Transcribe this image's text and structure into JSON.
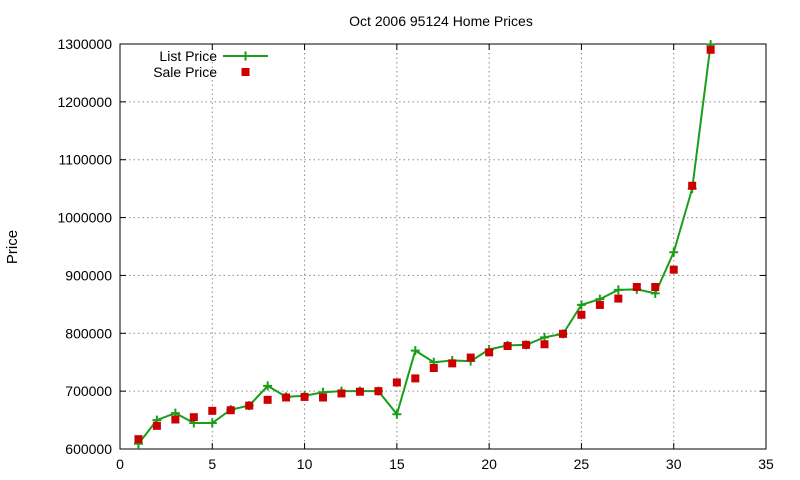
{
  "chart_data": {
    "type": "line",
    "title": "Oct 2006 95124 Home Prices",
    "xlabel": "",
    "ylabel": "Price",
    "xlim": [
      0,
      35
    ],
    "ylim": [
      600000,
      1300000
    ],
    "x_ticks": [
      0,
      5,
      10,
      15,
      20,
      25,
      30,
      35
    ],
    "y_ticks": [
      600000,
      700000,
      800000,
      900000,
      1000000,
      1100000,
      1200000,
      1300000
    ],
    "grid": true,
    "legend_position": "top-left",
    "x": [
      1,
      2,
      3,
      4,
      5,
      6,
      7,
      8,
      9,
      10,
      11,
      12,
      13,
      14,
      15,
      16,
      17,
      18,
      19,
      20,
      21,
      22,
      23,
      24,
      25,
      26,
      27,
      28,
      29,
      30,
      31,
      32
    ],
    "series": [
      {
        "name": "List Price",
        "style": "line-points",
        "marker": "plus",
        "color": "#1a9e1a",
        "values": [
          609000,
          650000,
          662000,
          645000,
          645000,
          668000,
          675000,
          709000,
          690000,
          692000,
          698000,
          700000,
          700000,
          700000,
          660000,
          770000,
          750000,
          753000,
          752000,
          772000,
          779000,
          780000,
          793000,
          799000,
          849000,
          859000,
          875000,
          876000,
          869000,
          940000,
          1050000,
          1299000
        ]
      },
      {
        "name": "Sale Price",
        "style": "points",
        "marker": "square",
        "color": "#cc0000",
        "values": [
          617000,
          640000,
          651000,
          655000,
          666000,
          667000,
          675000,
          685000,
          689000,
          690000,
          689000,
          696000,
          699000,
          700000,
          715000,
          722000,
          740000,
          748000,
          758000,
          767000,
          778000,
          780000,
          781000,
          799000,
          832000,
          849000,
          860000,
          880000,
          880000,
          910000,
          1055000,
          1290000
        ]
      }
    ]
  }
}
